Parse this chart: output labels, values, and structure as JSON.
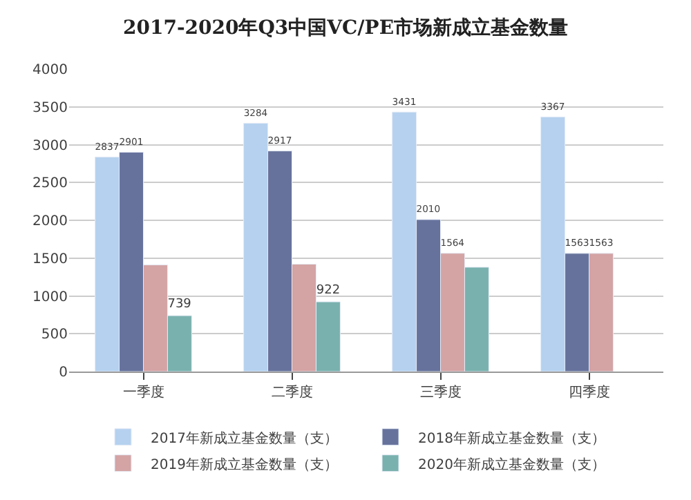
{
  "chart_data": {
    "type": "bar",
    "title": "2017-2020年Q3中国VC/PE市场新成立基金数量",
    "categories": [
      "一季度",
      "二季度",
      "三季度",
      "四季度"
    ],
    "series": [
      {
        "name": "2017年新成立基金数量（支）",
        "color": "#b5d1ef",
        "values": [
          2837,
          3284,
          3431,
          3367
        ],
        "value_labels": [
          "2837",
          "3284",
          "3431",
          "3367"
        ]
      },
      {
        "name": "2018年新成立基金数量（支）",
        "color": "#67729c",
        "values": [
          2901,
          2917,
          2010,
          1563
        ],
        "value_labels": [
          "2901",
          "2917",
          "2010",
          "1563"
        ]
      },
      {
        "name": "2019年新成立基金数量（支）",
        "color": "#d4a3a4",
        "values": [
          1410,
          1420,
          1564,
          1563
        ],
        "value_labels": [
          null,
          null,
          "1564",
          "1563"
        ]
      },
      {
        "name": "2020年新成立基金数量（支）",
        "color": "#79b1ae",
        "values": [
          739,
          922,
          1380,
          null
        ],
        "value_labels": [
          "739",
          "922",
          null,
          null
        ]
      }
    ],
    "ylim": [
      0,
      4000
    ],
    "yticks": [
      0,
      500,
      1000,
      1500,
      2000,
      2500,
      3000,
      3500,
      4000
    ],
    "grid": "y",
    "legend": "bottom"
  }
}
